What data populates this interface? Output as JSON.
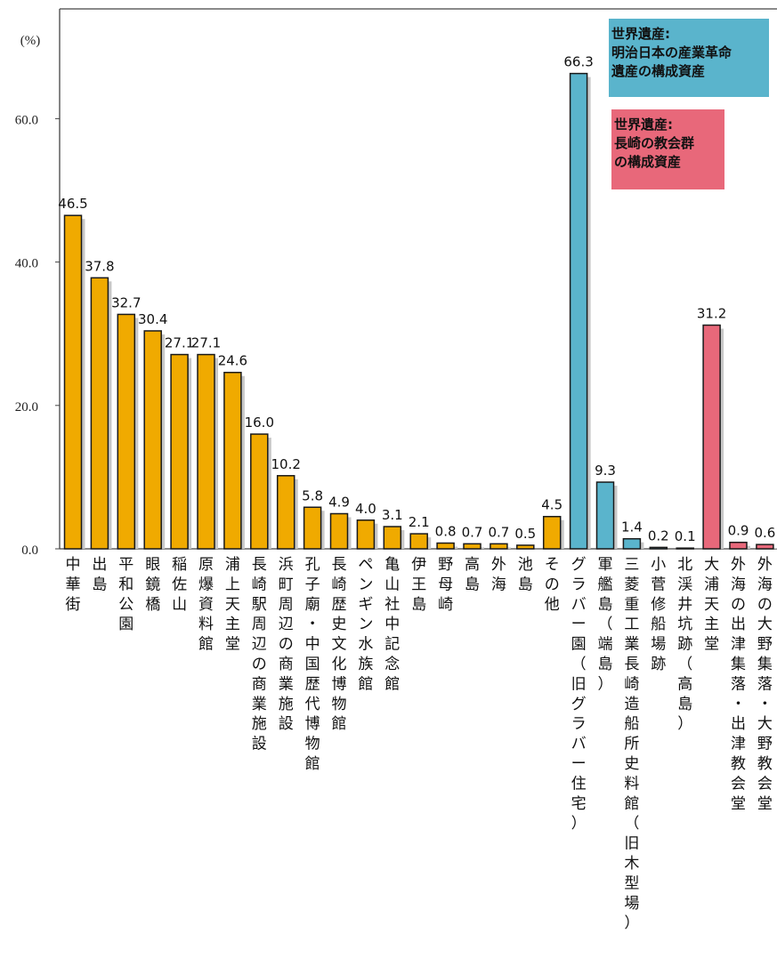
{
  "chart_data": {
    "type": "bar",
    "unit_label": "(%)",
    "ylim": [
      0,
      75
    ],
    "yticks": [
      "0.0",
      "20.0",
      "40.0",
      "60.0"
    ],
    "ytick_values": [
      0,
      20,
      40,
      60
    ],
    "grid": false,
    "legend_position": "top-right",
    "colors": {
      "general": "#F0AA00",
      "industrial": "#5AB4CC",
      "church": "#E8687A",
      "shadow": "#C8C8C8",
      "bar_stroke": "#1a1a1a"
    },
    "legend": [
      {
        "group": "industrial",
        "lines": [
          "世界遺産:",
          "明治日本の産業革命",
          "遺産の構成資産"
        ]
      },
      {
        "group": "church",
        "lines": [
          "世界遺産:",
          "長崎の教会群",
          "の構成資産"
        ]
      }
    ],
    "categories": [
      "中華街",
      "出島",
      "平和公園",
      "眼鏡橋",
      "稲佐山",
      "原爆資料館",
      "浦上天主堂",
      "長崎駅周辺の商業施設",
      "浜町周辺の商業施設",
      "孔子廟・中国歴代博物館",
      "長崎歴史文化博物館",
      "ペンギン水族館",
      "亀山社中記念館",
      "伊王島",
      "野母崎",
      "高島",
      "外海",
      "池島",
      "その他",
      "グラバー園（旧グラバー住宅）",
      "軍艦島（端島）",
      "三菱重工業長崎造船所史料館（旧木型場）",
      "小菅修船場跡",
      "北渓井坑跡（高島）",
      "大浦天主堂",
      "外海の出津集落・出津教会堂",
      "外海の大野集落・大野教会堂"
    ],
    "values": [
      46.5,
      37.8,
      32.7,
      30.4,
      27.1,
      27.1,
      24.6,
      16.0,
      10.2,
      5.8,
      4.9,
      4.0,
      3.1,
      2.1,
      0.8,
      0.7,
      0.7,
      0.5,
      4.5,
      66.3,
      9.3,
      1.4,
      0.2,
      0.1,
      31.2,
      0.9,
      0.6
    ],
    "value_labels": [
      "46.5",
      "37.8",
      "32.7",
      "30.4",
      "27.1",
      "27.1",
      "24.6",
      "16.0",
      "10.2",
      "5.8",
      "4.9",
      "4.0",
      "3.1",
      "2.1",
      "0.8",
      "0.7",
      "0.7",
      "0.5",
      "4.5",
      "66.3",
      "9.3",
      "1.4",
      "0.2",
      "0.1",
      "31.2",
      "0.9",
      "0.6"
    ],
    "groups": [
      "general",
      "general",
      "general",
      "general",
      "general",
      "general",
      "general",
      "general",
      "general",
      "general",
      "general",
      "general",
      "general",
      "general",
      "general",
      "general",
      "general",
      "general",
      "general",
      "industrial",
      "industrial",
      "industrial",
      "industrial",
      "industrial",
      "church",
      "church",
      "church"
    ]
  }
}
